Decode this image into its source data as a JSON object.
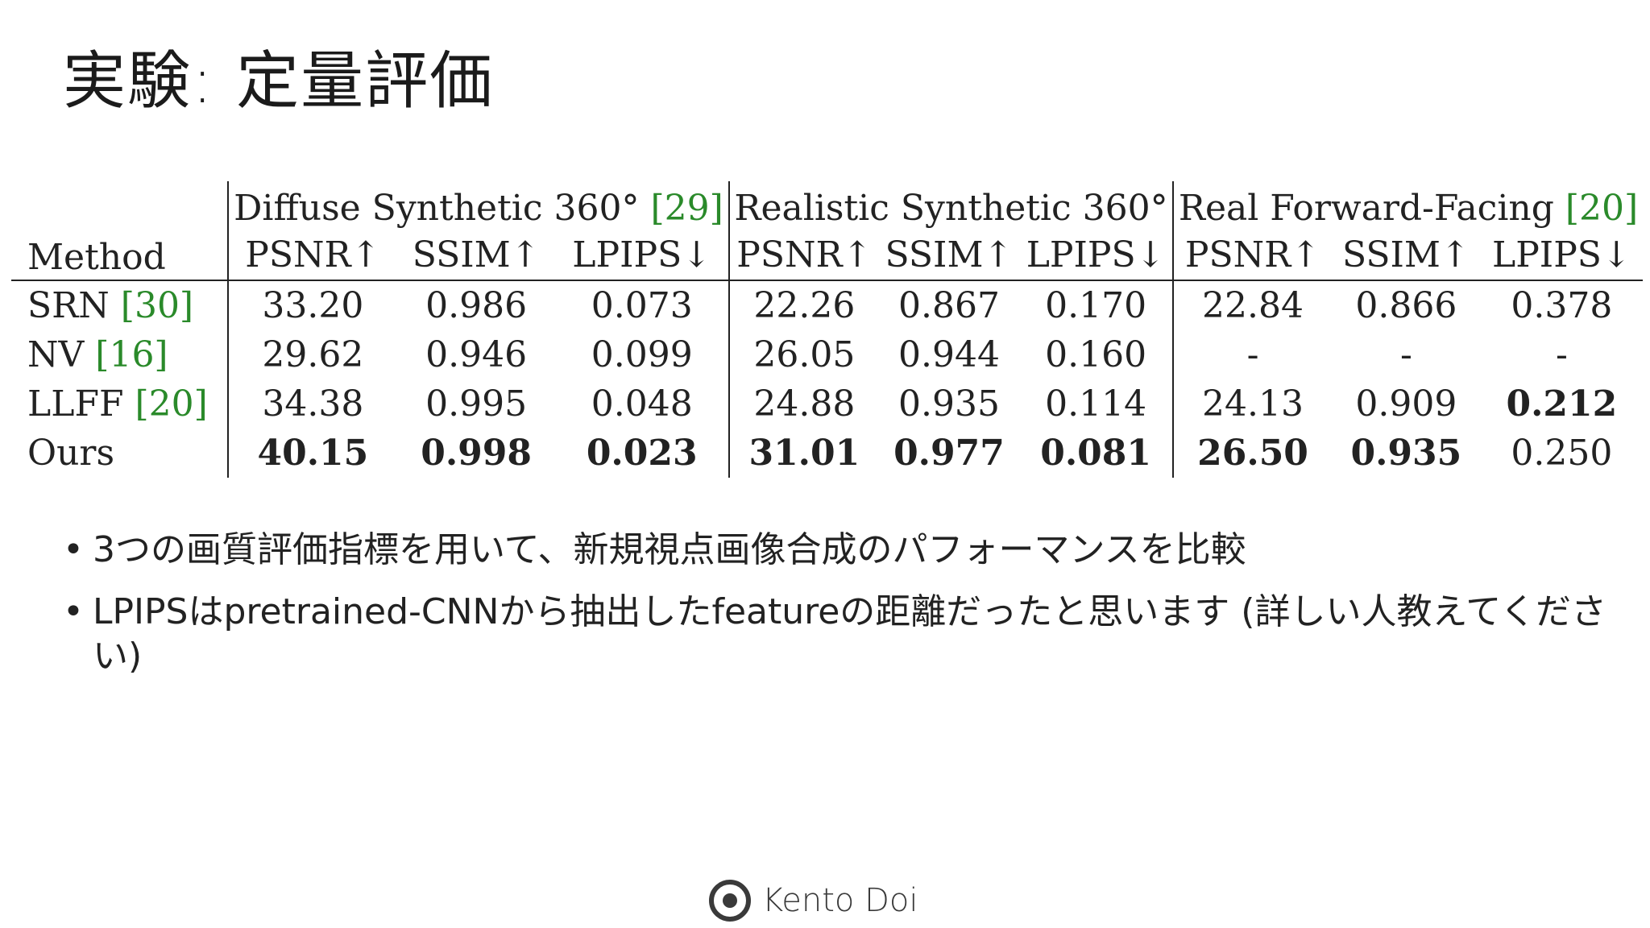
{
  "title": "実験: 定量評価",
  "table": {
    "method_header": "Method",
    "groups": [
      {
        "name": "Diffuse Synthetic 360°",
        "cite": "[29]"
      },
      {
        "name": "Realistic Synthetic 360°",
        "cite": ""
      },
      {
        "name": "Real Forward-Facing",
        "cite": "[20]"
      }
    ],
    "metrics": [
      "PSNR↑",
      "SSIM↑",
      "LPIPS↓"
    ],
    "rows": [
      {
        "method": "SRN",
        "cite": "[30]",
        "values": [
          "33.20",
          "0.986",
          "0.073",
          "22.26",
          "0.867",
          "0.170",
          "22.84",
          "0.866",
          "0.378"
        ],
        "bold": [
          false,
          false,
          false,
          false,
          false,
          false,
          false,
          false,
          false
        ]
      },
      {
        "method": "NV",
        "cite": "[16]",
        "values": [
          "29.62",
          "0.946",
          "0.099",
          "26.05",
          "0.944",
          "0.160",
          "-",
          "-",
          "-"
        ],
        "bold": [
          false,
          false,
          false,
          false,
          false,
          false,
          false,
          false,
          false
        ]
      },
      {
        "method": "LLFF",
        "cite": "[20]",
        "values": [
          "34.38",
          "0.995",
          "0.048",
          "24.88",
          "0.935",
          "0.114",
          "24.13",
          "0.909",
          "0.212"
        ],
        "bold": [
          false,
          false,
          false,
          false,
          false,
          false,
          false,
          false,
          true
        ]
      },
      {
        "method": "Ours",
        "cite": "",
        "values": [
          "40.15",
          "0.998",
          "0.023",
          "31.01",
          "0.977",
          "0.081",
          "26.50",
          "0.935",
          "0.250"
        ],
        "bold": [
          true,
          true,
          true,
          true,
          true,
          true,
          true,
          true,
          false
        ]
      }
    ]
  },
  "bullets": [
    "3つの画質評価指標を用いて、新規視点画像合成のパフォーマンスを比較",
    "LPIPSはpretrained-CNNから抽出したfeatureの距離だったと思います (詳しい人教えてください)"
  ],
  "footer": {
    "name": "Kento Doi",
    "icon": "eye-logo-icon"
  },
  "colors": {
    "citation": "#2a8a2a",
    "text": "#222222",
    "background": "#ffffff"
  }
}
